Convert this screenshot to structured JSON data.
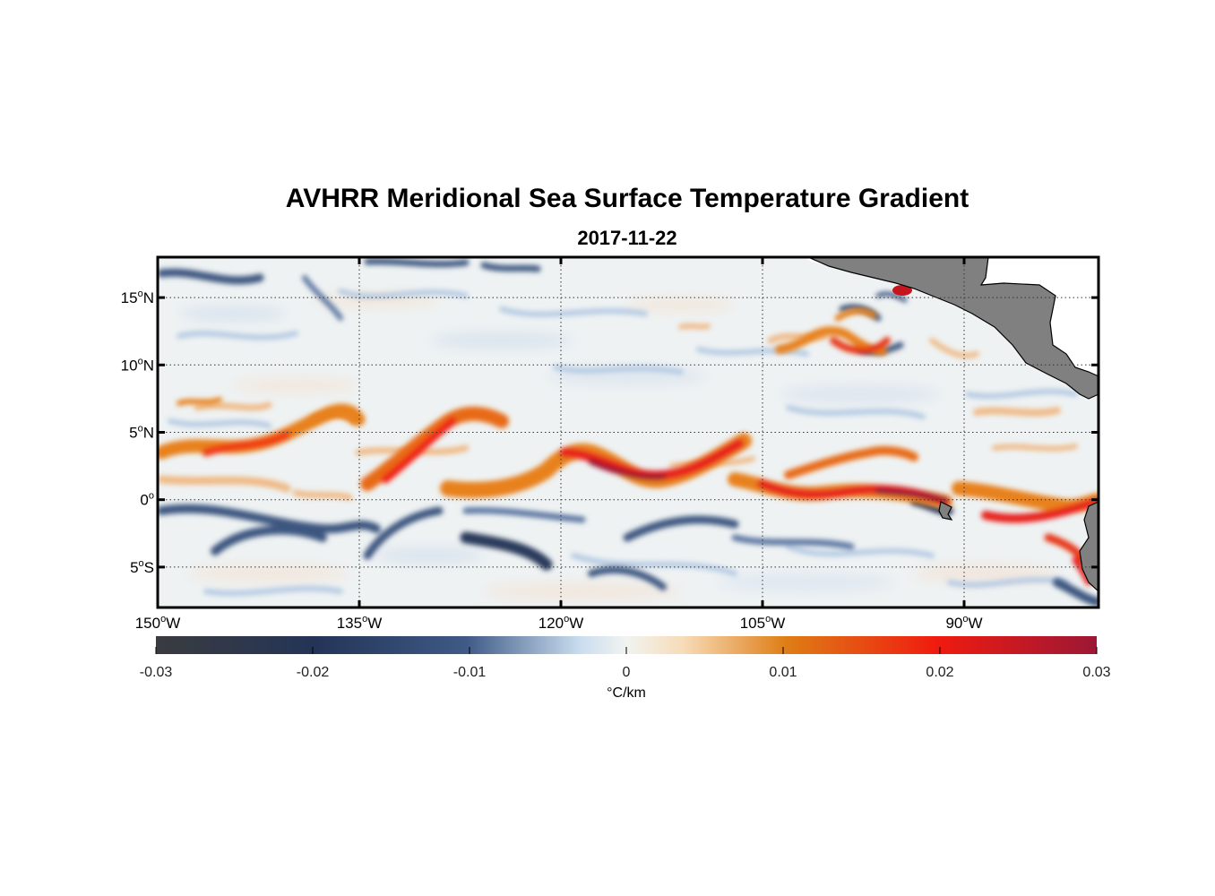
{
  "title": "AVHRR Meridional Sea Surface Temperature Gradient",
  "date": "2017-11-22",
  "map": {
    "lon_range": [
      -150,
      -80
    ],
    "lat_range": [
      -8,
      18
    ],
    "lon_ticks": [
      {
        "value": -150,
        "deg": "150",
        "hemi": "W"
      },
      {
        "value": -135,
        "deg": "135",
        "hemi": "W"
      },
      {
        "value": -120,
        "deg": "120",
        "hemi": "W"
      },
      {
        "value": -105,
        "deg": "105",
        "hemi": "W"
      },
      {
        "value": -90,
        "deg": "90",
        "hemi": "W"
      }
    ],
    "lat_ticks": [
      {
        "value": 15,
        "deg": "15",
        "hemi": "N"
      },
      {
        "value": 10,
        "deg": "10",
        "hemi": "N"
      },
      {
        "value": 5,
        "deg": "5",
        "hemi": "N"
      },
      {
        "value": 0,
        "deg": "0",
        "hemi": ""
      },
      {
        "value": -5,
        "deg": "5",
        "hemi": "S"
      }
    ],
    "grid": "dotted",
    "land_color": "#808080",
    "ocean_background": "#eef2f3"
  },
  "colorbar": {
    "ticks": [
      "-0.03",
      "-0.02",
      "-0.01",
      "0",
      "0.01",
      "0.02",
      "0.03"
    ],
    "range": [
      -0.03,
      0.03
    ],
    "label": "°C/km",
    "colors": [
      "#3a3b3f",
      "#243457",
      "#3f5a86",
      "#c9dcee",
      "#f2f3f1",
      "#f7dcb8",
      "#df7d15",
      "#f01b10",
      "#9c1735"
    ]
  }
}
